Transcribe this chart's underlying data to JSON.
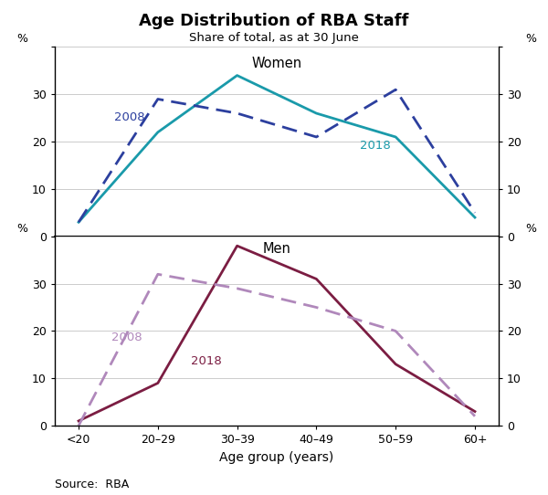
{
  "title": "Age Distribution of RBA Staff",
  "subtitle": "Share of total, as at 30 June",
  "source": "Source:  RBA",
  "categories": [
    "<20",
    "20–29",
    "30–39",
    "40–49",
    "50–59",
    "60+"
  ],
  "women_2018": [
    3,
    22,
    34,
    26,
    21,
    4
  ],
  "women_2008": [
    3,
    29,
    26,
    21,
    31,
    5
  ],
  "men_2018": [
    1,
    9,
    38,
    31,
    13,
    3
  ],
  "men_2008": [
    0,
    32,
    29,
    25,
    20,
    2
  ],
  "women_2018_color": "#1a9aaa",
  "women_2008_color": "#2c3f9e",
  "men_2018_color": "#7b1d42",
  "men_2008_color": "#b088bb",
  "yticks": [
    0,
    10,
    20,
    30,
    40
  ],
  "background_color": "#ffffff",
  "grid_color": "#cccccc"
}
